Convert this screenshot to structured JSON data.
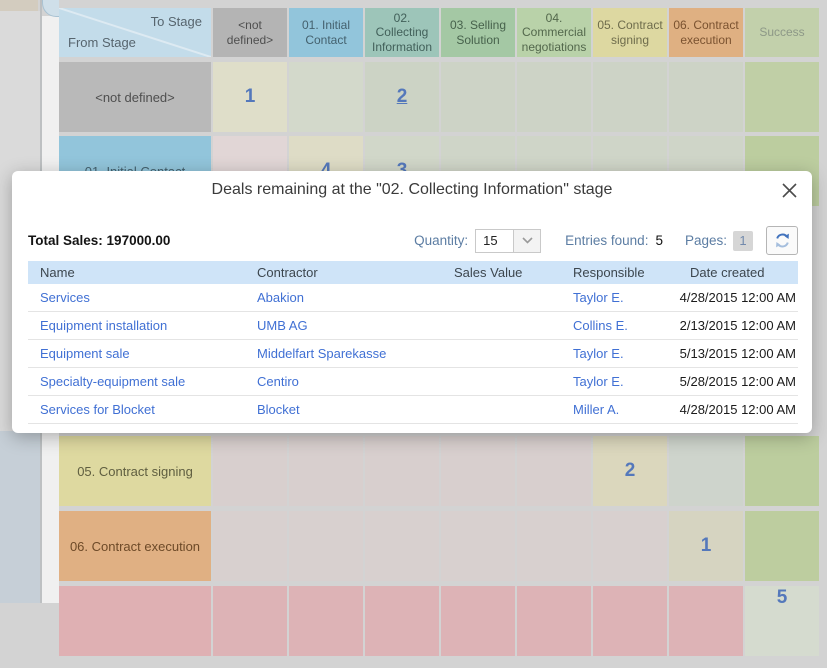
{
  "page": {
    "background": "#d3d3d3"
  },
  "matrix": {
    "corner": {
      "to_label": "To Stage",
      "from_label": "From Stage"
    },
    "number_color": "#5478bb",
    "columns": [
      {
        "label": "<not defined>",
        "bg": "#b4b4b4",
        "text": "#4f4f4f"
      },
      {
        "label": "01. Initial Contact",
        "bg": "#92c5db",
        "text": "#44616e"
      },
      {
        "label": "02. Collecting Information",
        "bg": "#9dc5b9",
        "text": "#42605a"
      },
      {
        "label": "03. Selling Solution",
        "bg": "#a4c8a4",
        "text": "#47624c"
      },
      {
        "label": "04. Commercial negotiations",
        "bg": "#b9d2a9",
        "text": "#53684c"
      },
      {
        "label": "05. Contract signing",
        "bg": "#ddd8a1",
        "text": "#6e6c4c"
      },
      {
        "label": "06. Contract execution",
        "bg": "#dfb082",
        "text": "#7a5230"
      },
      {
        "label": "Success",
        "bg": "#c2d0ab",
        "text": "#8d9887"
      }
    ],
    "rows": [
      {
        "key": "nd",
        "label": "<not defined>",
        "label_bg": "#b9b9b9",
        "label_text": "#4f4f4f",
        "cells": [
          {
            "bg": "#dfdec9",
            "value": "1"
          },
          {
            "bg": "#d3d9cb"
          },
          {
            "bg": "#ccd3c5",
            "value": "2",
            "underline": true
          },
          {
            "bg": "#cdd3c6"
          },
          {
            "bg": "#cdd3c6"
          },
          {
            "bg": "#cdd3c6"
          },
          {
            "bg": "#cdd3c6"
          },
          {
            "bg": "#c0cfa6"
          }
        ]
      },
      {
        "key": "c01",
        "label": "01. Initial Contact",
        "label_bg": "#92c5db",
        "label_text": "#44616e",
        "cells": [
          {
            "bg": "#e1d6d6"
          },
          {
            "bg": "#dedcc6",
            "value": "4"
          },
          {
            "bg": "#d1d7c9",
            "value": "3"
          },
          {
            "bg": "#cfd5c8"
          },
          {
            "bg": "#cfd5c8"
          },
          {
            "bg": "#cfd5c8"
          },
          {
            "bg": "#cfd5c8"
          },
          {
            "bg": "#bccd9f"
          }
        ]
      },
      {
        "key": "c05",
        "label": "05. Contract signing",
        "label_bg": "#ded9a0",
        "label_text": "#5f5e40",
        "cells": [
          {
            "bg": "#d8cfce"
          },
          {
            "bg": "#d8cfce"
          },
          {
            "bg": "#d8cfce"
          },
          {
            "bg": "#d8cfce"
          },
          {
            "bg": "#d8cfce"
          },
          {
            "bg": "#dbd7bd",
            "value": "2"
          },
          {
            "bg": "#ced4cc"
          },
          {
            "bg": "#bccd9e"
          }
        ]
      },
      {
        "key": "c06",
        "label": "06. Contract execution",
        "label_bg": "#e0b083",
        "label_text": "#6d4a28",
        "cells": [
          {
            "bg": "#d8d0cf"
          },
          {
            "bg": "#d8d0cf"
          },
          {
            "bg": "#d8d0cf"
          },
          {
            "bg": "#d8d0cf"
          },
          {
            "bg": "#d8d0cf"
          },
          {
            "bg": "#d8d0cf"
          },
          {
            "bg": "#d6d4c1",
            "value": "1"
          },
          {
            "bg": "#bdcd9f"
          }
        ]
      },
      {
        "key": "fail",
        "label": "",
        "label_bg": "#dfb0b3",
        "label_text": "#6d3a3a",
        "cells": [
          {
            "bg": "#ddb3b6"
          },
          {
            "bg": "#ddb3b6"
          },
          {
            "bg": "#ddb3b6"
          },
          {
            "bg": "#ddb3b6"
          },
          {
            "bg": "#ddb3b6"
          },
          {
            "bg": "#ddb3b6"
          },
          {
            "bg": "#ddb3b6"
          },
          {
            "bg": "#d5dbcf",
            "value": "5"
          }
        ]
      }
    ]
  },
  "modal": {
    "title": "Deals remaining at the \"02. Collecting Information\" stage",
    "summary": {
      "total_sales_label": "Total Sales:",
      "total_sales_value": "197000.00"
    },
    "toolbar": {
      "quantity_label": "Quantity:",
      "quantity_value": "15",
      "entries_label": "Entries found:",
      "entries_value": "5",
      "pages_label": "Pages:",
      "current_page": "1"
    },
    "colors": {
      "table_header_bg": "#cfe4f8",
      "link": "#4070d4",
      "label_blue": "#5c7da3"
    },
    "table": {
      "headers": [
        "Name",
        "Contractor",
        "Sales Value",
        "Responsible",
        "Date created"
      ],
      "rows": [
        {
          "name": "Services",
          "contractor": "Abakion",
          "sales_value": "",
          "responsible": "Taylor E.",
          "date_created": "4/28/2015 12:00 AM"
        },
        {
          "name": "Equipment installation",
          "contractor": "UMB AG",
          "sales_value": "",
          "responsible": "Collins E.",
          "date_created": "2/13/2015 12:00 AM"
        },
        {
          "name": "Equipment sale",
          "contractor": "Middelfart Sparekasse",
          "sales_value": "",
          "responsible": "Taylor E.",
          "date_created": "5/13/2015 12:00 AM"
        },
        {
          "name": "Specialty-equipment sale",
          "contractor": "Centiro",
          "sales_value": "",
          "responsible": "Taylor E.",
          "date_created": "5/28/2015 12:00 AM"
        },
        {
          "name": "Services for Blocket",
          "contractor": "Blocket",
          "sales_value": "",
          "responsible": "Miller A.",
          "date_created": "4/28/2015 12:00 AM"
        }
      ]
    }
  }
}
